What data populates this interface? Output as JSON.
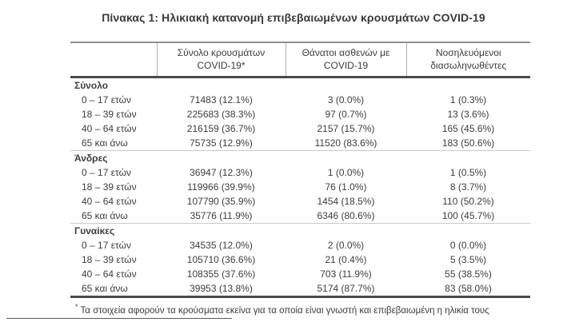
{
  "title": "Πίνακας 1: Ηλικιακή κατανομή επιβεβαιωμένων κρουσμάτων COVID-19",
  "colors": {
    "text": "#3d3d40",
    "heavy_rule": "#4b4b4d",
    "light_rule": "#c9c9cb",
    "header_top_rule": "#8f8f91"
  },
  "table": {
    "header": [
      {
        "line1": "",
        "line2": ""
      },
      {
        "line1": "Σύνολο κρουσμάτων",
        "line2": "COVID-19*"
      },
      {
        "line1": "Θάνατοι ασθενών με",
        "line2": "COVID-19"
      },
      {
        "line1": "Νοσηλευόμενοι",
        "line2": "διασωληνωθέντες"
      }
    ],
    "sections": [
      {
        "label": "Σύνολο",
        "rows": [
          {
            "cells": [
              "0 – 17 ετών",
              "71483 (12.1%)",
              "3 (0.0%)",
              "1 (0.3%)"
            ]
          },
          {
            "cells": [
              "18 – 39 ετών",
              "225683 (38.3%)",
              "97 (0.7%)",
              "13 (3.6%)"
            ]
          },
          {
            "cells": [
              "40 – 64 ετών",
              "216159 (36.7%)",
              "2157 (15.7%)",
              "165 (45.6%)"
            ]
          },
          {
            "cells": [
              "65 και άνω",
              "75735 (12.9%)",
              "11520 (83.6%)",
              "183 (50.6%)"
            ]
          }
        ]
      },
      {
        "label": "Άνδρες",
        "rows": [
          {
            "cells": [
              "0 – 17 ετών",
              "36947 (12.3%)",
              "1 (0.0%)",
              "1 (0.5%)"
            ]
          },
          {
            "cells": [
              "18 – 39 ετών",
              "119966 (39.9%)",
              "76 (1.0%)",
              "8 (3.7%)"
            ]
          },
          {
            "cells": [
              "40 – 64 ετών",
              "107790 (35.9%)",
              "1454 (18.5%)",
              "110 (50.2%)"
            ]
          },
          {
            "cells": [
              "65 και άνω",
              "35776 (11.9%)",
              "6346 (80.6%)",
              "100 (45.7%)"
            ]
          }
        ]
      },
      {
        "label": "Γυναίκες",
        "rows": [
          {
            "cells": [
              "0 – 17 ετών",
              "34535 (12.0%)",
              "2 (0.0%)",
              "0 (0.0%)"
            ]
          },
          {
            "cells": [
              "18 – 39 ετών",
              "105710 (36.6%)",
              "21 (0.4%)",
              "5 (3.5%)"
            ]
          },
          {
            "cells": [
              "40 – 64 ετών",
              "108355 (37.6%)",
              "703 (11.9%)",
              "55 (38.5%)"
            ]
          },
          {
            "cells": [
              "65 και άνω",
              "39953 (13.8%)",
              "5174 (87.7%)",
              "83 (58.0%)"
            ]
          }
        ]
      }
    ]
  },
  "footnote": {
    "marker": "*",
    "text": " Τα στοιχεία αφορούν τα κρούσματα εκείνα για τα οποία είναι γνωστή και επιβεβαιωμένη η ηλικία τους"
  }
}
